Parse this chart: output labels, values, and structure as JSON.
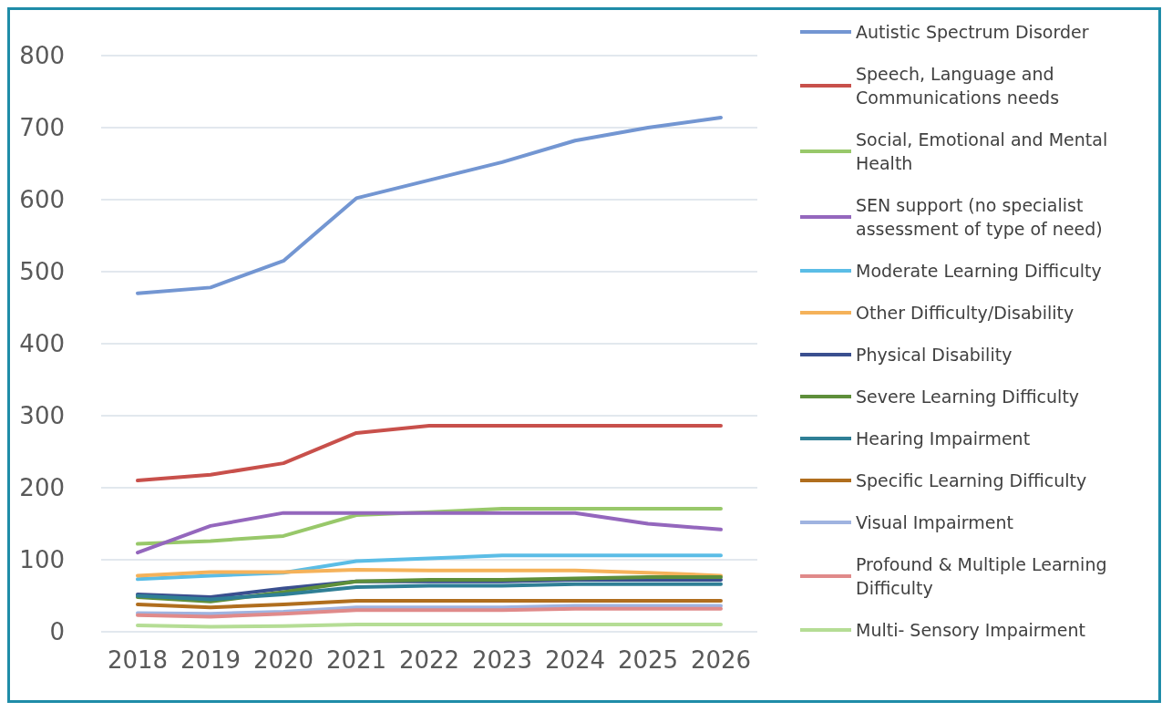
{
  "chart_data": {
    "type": "line",
    "categories": [
      "2018",
      "2019",
      "2020",
      "2021",
      "2022",
      "2023",
      "2024",
      "2025",
      "2026"
    ],
    "ylim": [
      0,
      800
    ],
    "yticks": [
      0,
      100,
      200,
      300,
      400,
      500,
      600,
      700,
      800
    ],
    "grid": "y",
    "legend": "right",
    "marker": "none",
    "line_style": "solid",
    "series": [
      {
        "name": "Autistic Spectrum Disorder",
        "color": "#7396d2",
        "values": [
          470,
          478,
          515,
          602,
          627,
          652,
          682,
          700,
          714
        ]
      },
      {
        "name": "Speech, Language and Communications needs",
        "color": "#c8504b",
        "values": [
          210,
          218,
          234,
          276,
          286,
          286,
          286,
          286,
          286
        ]
      },
      {
        "name": "Social, Emotional and Mental Health",
        "color": "#98c86a",
        "values": [
          122,
          126,
          133,
          162,
          166,
          171,
          171,
          171,
          171
        ]
      },
      {
        "name": "SEN support (no specialist assessment of type of need)",
        "color": "#9467bd",
        "values": [
          110,
          147,
          165,
          165,
          165,
          165,
          165,
          150,
          142
        ]
      },
      {
        "name": "Moderate Learning Difficulty",
        "color": "#5bbde6",
        "values": [
          73,
          78,
          82,
          98,
          102,
          106,
          106,
          106,
          106
        ]
      },
      {
        "name": "Other Difficulty/Disability",
        "color": "#f5b25a",
        "values": [
          78,
          83,
          83,
          86,
          85,
          85,
          85,
          82,
          78
        ]
      },
      {
        "name": "Physical Disability",
        "color": "#3a4f8f",
        "values": [
          52,
          48,
          60,
          70,
          70,
          70,
          72,
          72,
          72
        ]
      },
      {
        "name": "Severe Learning Difficulty",
        "color": "#5e8f3a",
        "values": [
          48,
          42,
          55,
          70,
          72,
          72,
          74,
          76,
          76
        ]
      },
      {
        "name": "Hearing Impairment",
        "color": "#2f7f96",
        "values": [
          50,
          45,
          52,
          62,
          64,
          64,
          66,
          66,
          66
        ]
      },
      {
        "name": "Specific Learning Difficulty",
        "color": "#b06e1e",
        "values": [
          38,
          34,
          38,
          43,
          43,
          43,
          43,
          43,
          43
        ]
      },
      {
        "name": "Visual Impairment",
        "color": "#9fb3e0",
        "values": [
          26,
          25,
          28,
          34,
          34,
          34,
          36,
          36,
          36
        ]
      },
      {
        "name": "Profound & Multiple Learning Difficulty",
        "color": "#e08a8a",
        "values": [
          23,
          21,
          25,
          30,
          30,
          30,
          32,
          32,
          32
        ]
      },
      {
        "name": "Multi- Sensory Impairment",
        "color": "#b5dd95",
        "values": [
          9,
          7,
          8,
          10,
          10,
          10,
          10,
          10,
          10
        ]
      }
    ]
  }
}
